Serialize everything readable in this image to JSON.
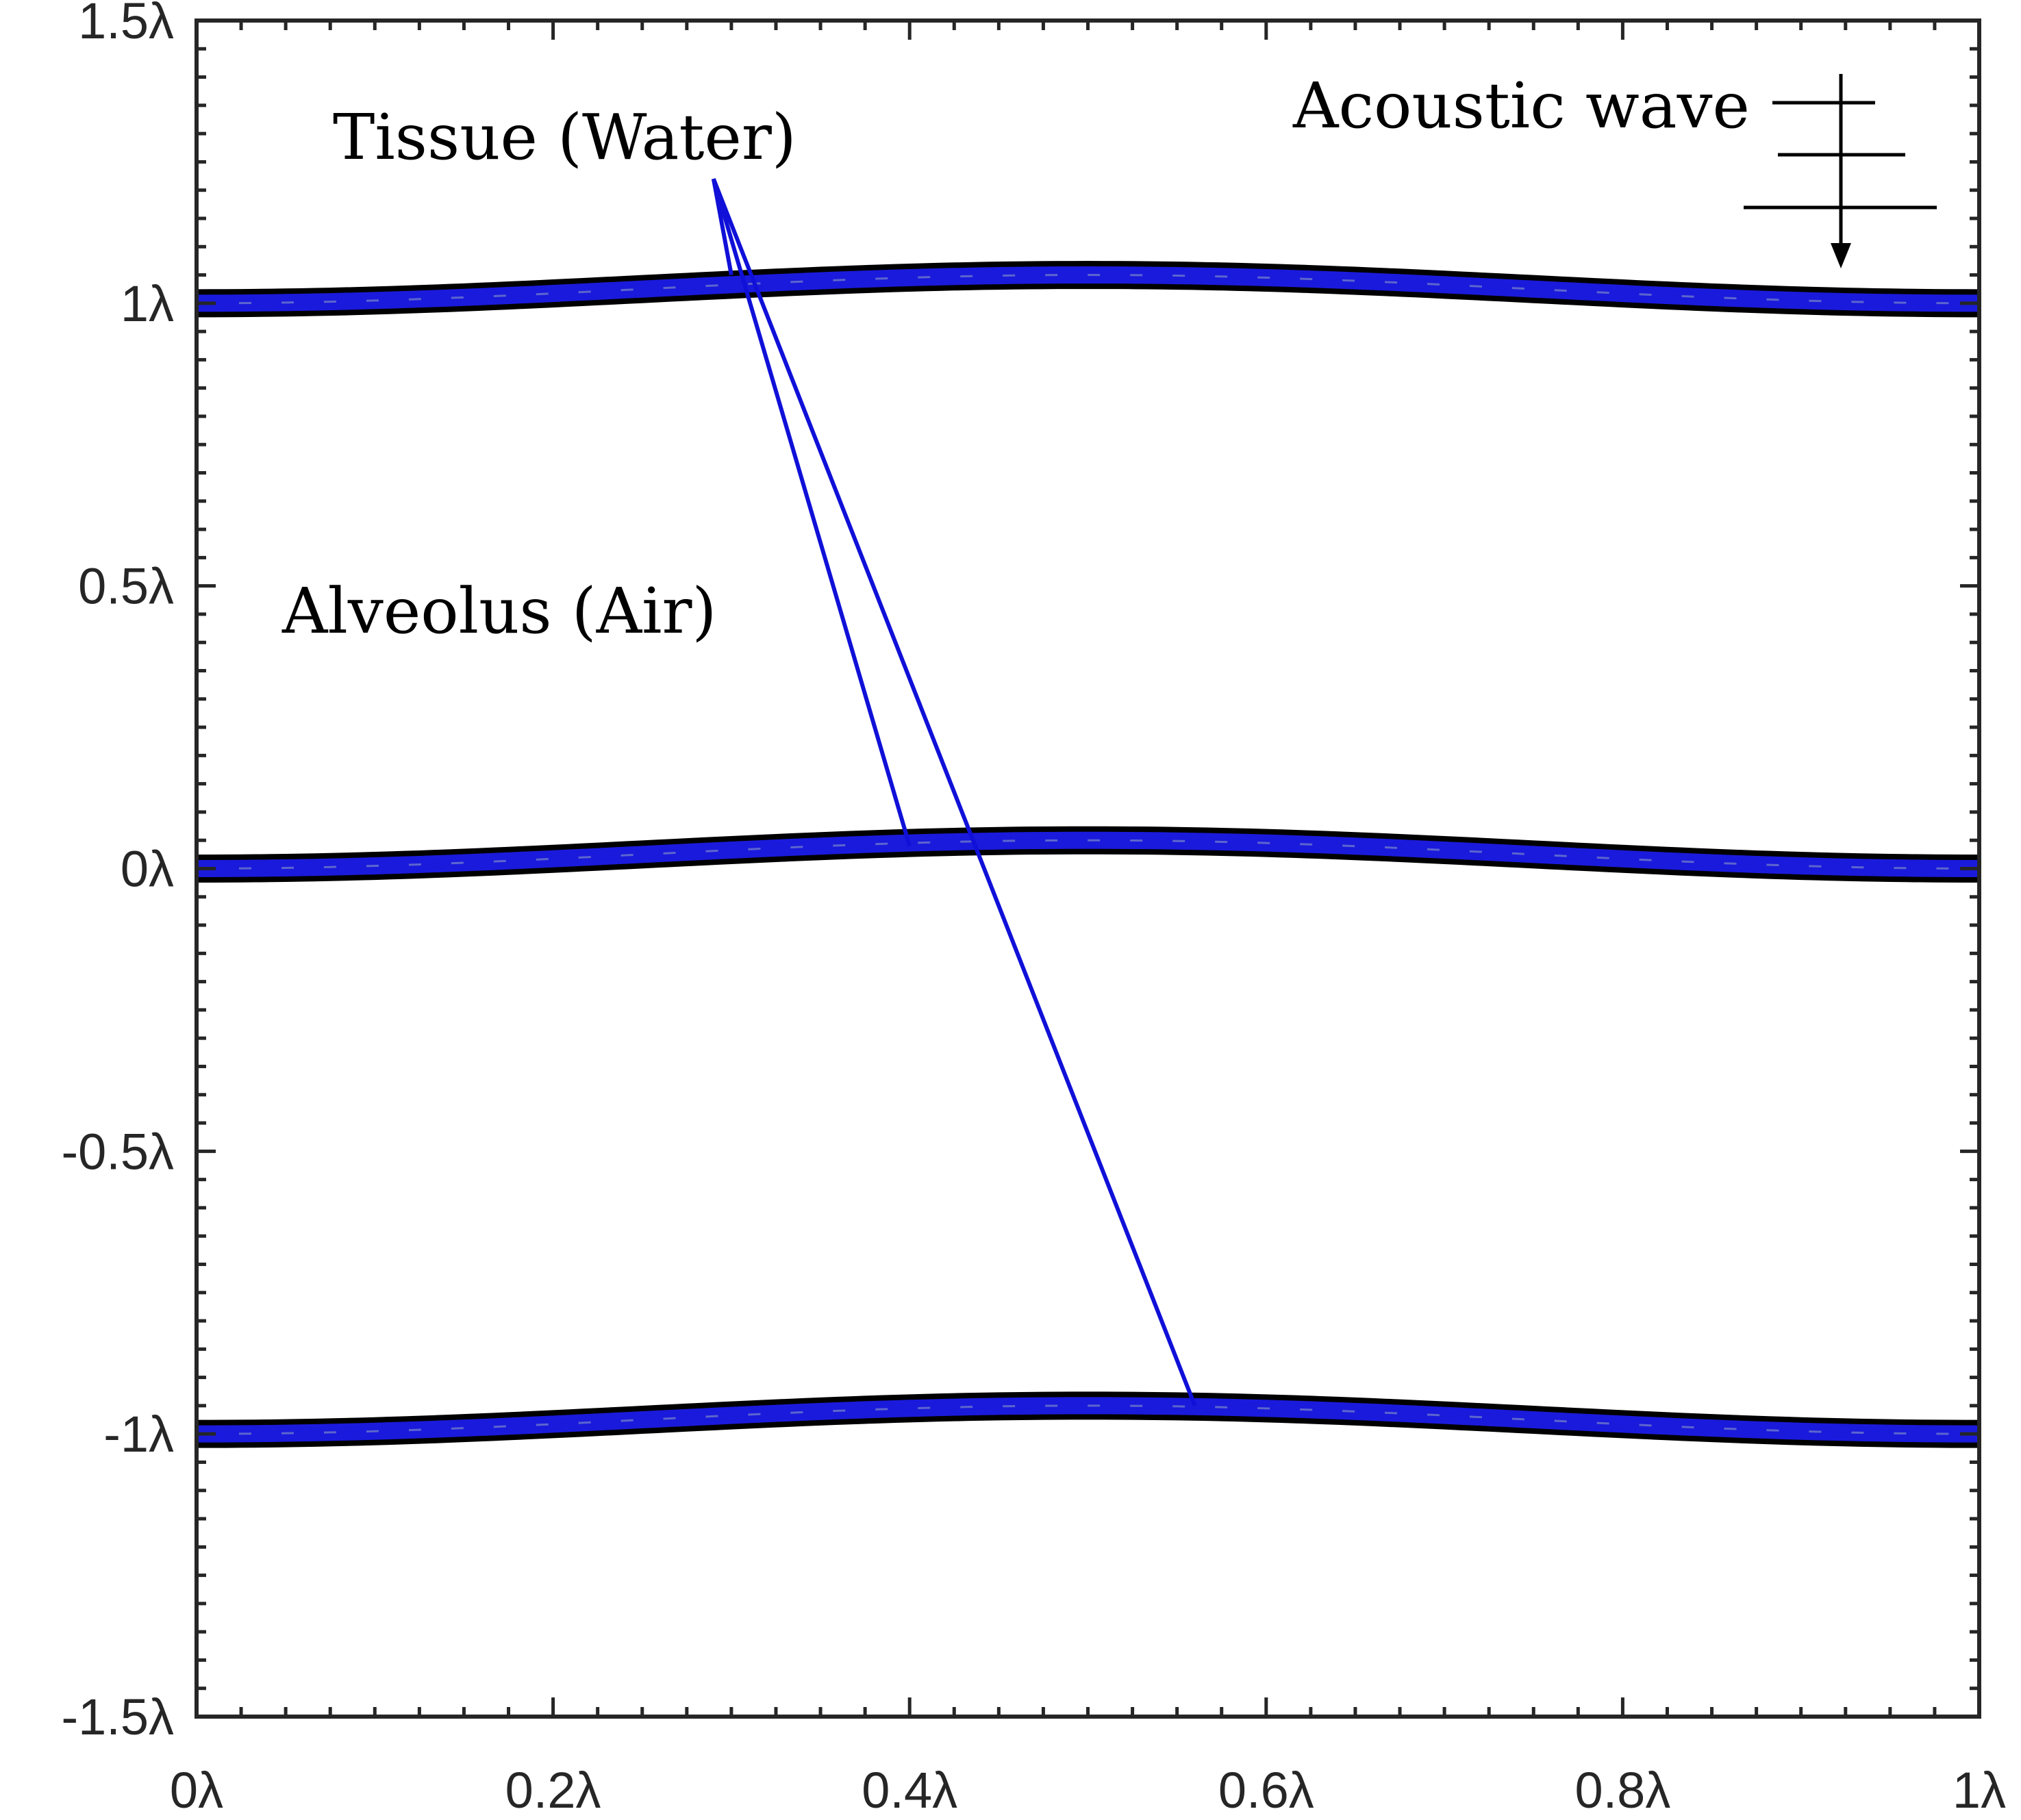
{
  "chart_data": {
    "type": "line",
    "xlim": [
      0,
      1
    ],
    "ylim": [
      -1.5,
      1.5
    ],
    "unit_symbol": "λ",
    "x_ticks": [
      {
        "value": 0,
        "label": "0λ"
      },
      {
        "value": 0.2,
        "label": "0.2λ"
      },
      {
        "value": 0.4,
        "label": "0.4λ"
      },
      {
        "value": 0.6,
        "label": "0.6λ"
      },
      {
        "value": 0.8,
        "label": "0.8λ"
      },
      {
        "value": 1,
        "label": "1λ"
      }
    ],
    "y_ticks": [
      {
        "value": 1.5,
        "label": "1.5λ"
      },
      {
        "value": 1,
        "label": "1λ"
      },
      {
        "value": 0.5,
        "label": "0.5λ"
      },
      {
        "value": 0,
        "label": "0λ"
      },
      {
        "value": -0.5,
        "label": "-0.5λ"
      },
      {
        "value": -1,
        "label": "-1λ"
      },
      {
        "value": -1.5,
        "label": "-1.5λ"
      }
    ],
    "membranes": [
      {
        "baseline": 1.0,
        "bulge": 0.05,
        "half_thickness": 0.02
      },
      {
        "baseline": 0.0,
        "bulge": 0.05,
        "half_thickness": 0.02
      },
      {
        "baseline": -1.0,
        "bulge": 0.05,
        "half_thickness": 0.02
      }
    ],
    "colors": {
      "membrane_edge": "#000000",
      "membrane_fill": "#1a1adc",
      "pointer": "#1010d8",
      "axis": "#262626"
    },
    "annotations": {
      "tissue": {
        "text": "Tissue (Water)",
        "pointer_origin": [
          0.29,
          1.22
        ],
        "targets": [
          [
            0.3,
            1.05
          ],
          [
            0.4,
            0.04
          ],
          [
            0.56,
            -0.95
          ]
        ]
      },
      "alveolus": {
        "text": "Alveolus (Air)"
      },
      "acoustic_wave": {
        "text": "Acoustic wave",
        "direction": "down"
      }
    }
  }
}
